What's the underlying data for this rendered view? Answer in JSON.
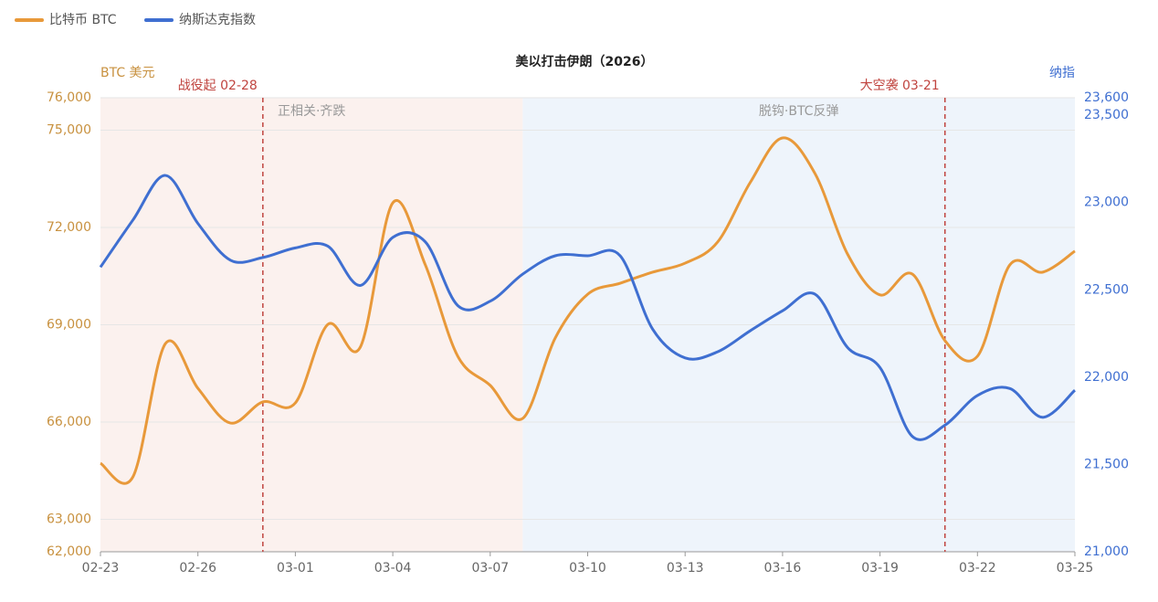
{
  "chart_data": {
    "type": "line",
    "title": "美以打击伊朗（2026）",
    "y_label": "BTC 美元",
    "y2_label": "纳指",
    "legend": "top-left",
    "grid": true,
    "x": [
      "02-23",
      "02-24",
      "02-25",
      "02-26",
      "02-27",
      "02-28",
      "03-01",
      "03-02",
      "03-03",
      "03-04",
      "03-05",
      "03-06",
      "03-07",
      "03-08",
      "03-09",
      "03-10",
      "03-11",
      "03-12",
      "03-13",
      "03-14",
      "03-15",
      "03-16",
      "03-17",
      "03-18",
      "03-19",
      "03-20",
      "03-21",
      "03-22",
      "03-23",
      "03-24",
      "03-25"
    ],
    "xticks": [
      "02-23",
      "02-26",
      "03-01",
      "03-04",
      "03-07",
      "03-10",
      "03-13",
      "03-16",
      "03-19",
      "03-22",
      "03-25"
    ],
    "ylim": [
      62000,
      76000
    ],
    "yticks": [
      {
        "value": 62000,
        "label": "62,000"
      },
      {
        "value": 63000,
        "label": "63,000"
      },
      {
        "value": 66000,
        "label": "66,000"
      },
      {
        "value": 69000,
        "label": "69,000"
      },
      {
        "value": 72000,
        "label": "72,000"
      },
      {
        "value": 75000,
        "label": "75,000"
      },
      {
        "value": 76000,
        "label": "76,000"
      }
    ],
    "y2lim": [
      21000,
      23600
    ],
    "y2ticks": [
      {
        "value": 21000,
        "label": "21,000"
      },
      {
        "value": 21500,
        "label": "21,500"
      },
      {
        "value": 22000,
        "label": "22,000"
      },
      {
        "value": 22500,
        "label": "22,500"
      },
      {
        "value": 23000,
        "label": "23,000"
      },
      {
        "value": 23500,
        "label": "23,500"
      },
      {
        "value": 23600,
        "label": "23,600"
      }
    ],
    "series": [
      {
        "name": "比特币 BTC",
        "color": "#e8993a",
        "values": [
          64730,
          64310,
          68420,
          67040,
          65970,
          66620,
          66590,
          69010,
          68310,
          72760,
          70850,
          68030,
          67130,
          66110,
          68590,
          69940,
          70280,
          70620,
          70900,
          71550,
          73380,
          74760,
          73660,
          71180,
          69920,
          70560,
          68510,
          68030,
          70850,
          70620,
          71270
        ]
      },
      {
        "name": "纳斯达克指数",
        "color": "#3f6fd1",
        "axis": "y2",
        "values": [
          22630,
          22900,
          23155,
          22880,
          22670,
          22685,
          22740,
          22750,
          22525,
          22800,
          22775,
          22410,
          22435,
          22590,
          22695,
          22695,
          22695,
          22275,
          22110,
          22145,
          22265,
          22380,
          22475,
          22170,
          22055,
          21660,
          21725,
          21895,
          21935,
          21770,
          21925
        ]
      }
    ],
    "regions": [
      {
        "from": "02-23",
        "to": "03-08",
        "label": "正相关·齐跌",
        "color": "#fbf1ee"
      },
      {
        "from": "03-08",
        "to": "03-25",
        "label": "脱钩·BTC反弹",
        "color": "#eef4fb"
      }
    ],
    "markers": [
      {
        "x": "02-28",
        "label": "战役起 02-28",
        "color": "#c0443f"
      },
      {
        "x": "03-21",
        "label": "大空袭 03-21",
        "color": "#c0443f"
      }
    ]
  }
}
